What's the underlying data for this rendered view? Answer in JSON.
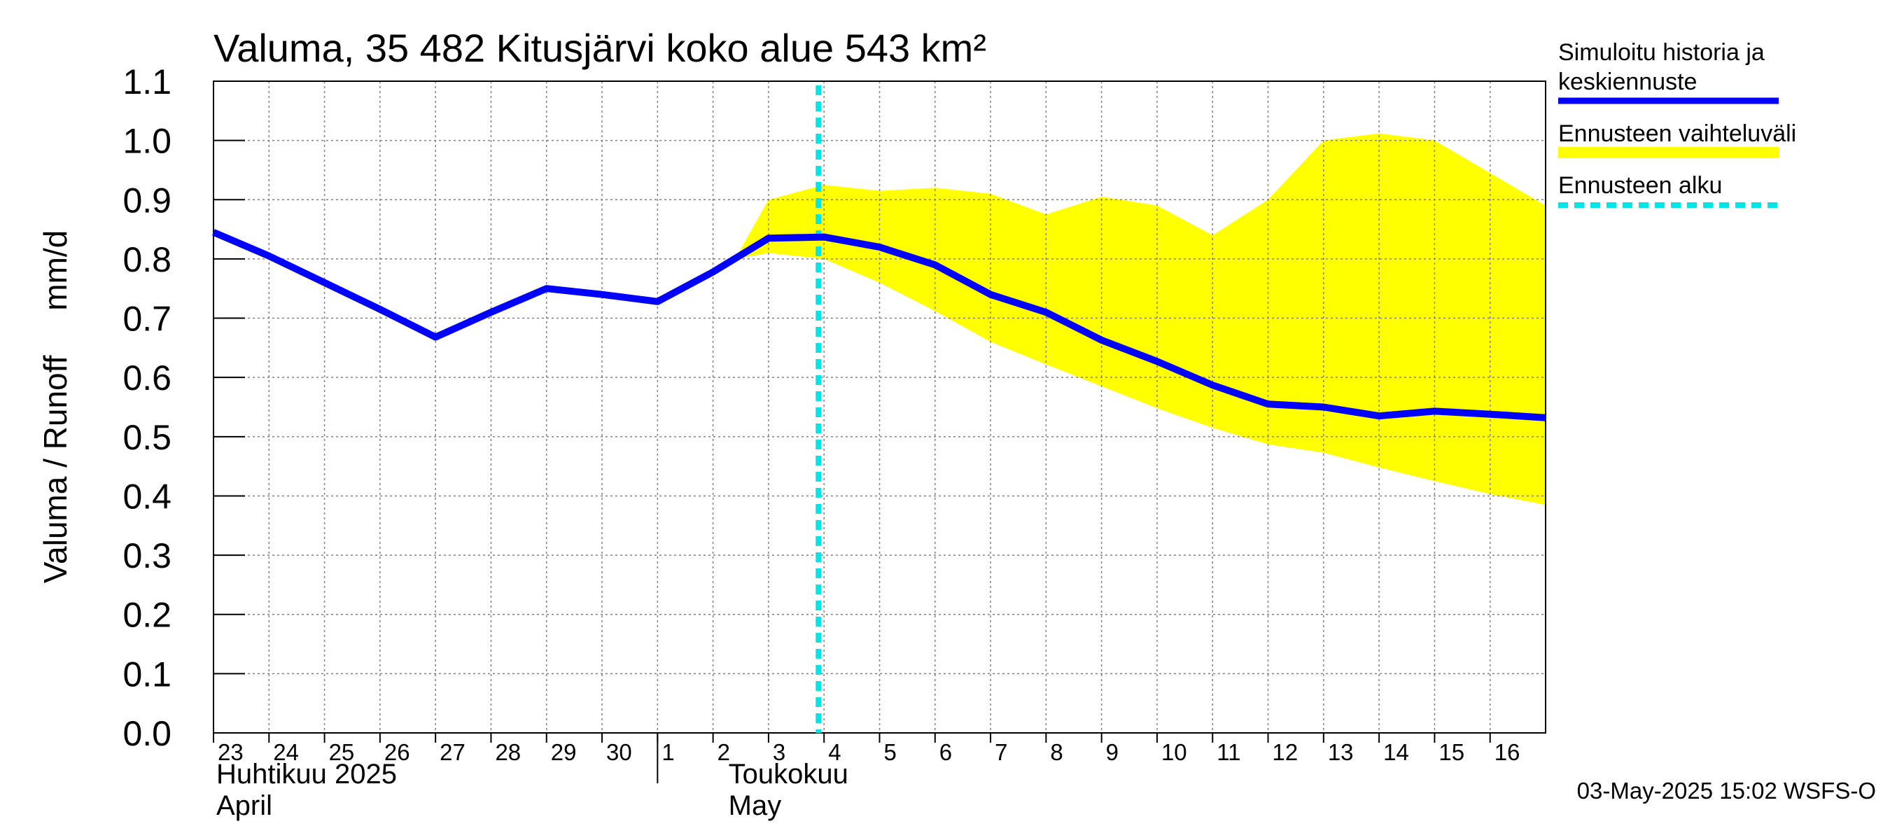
{
  "chart_data": {
    "type": "line",
    "title": "Valuma, 35 482 Kitusjärvi koko alue 543 km²",
    "ylabel": "Valuma / Runoff     mm/d",
    "ylim": [
      0.0,
      1.1
    ],
    "y_ticks": [
      "0.0",
      "0.1",
      "0.2",
      "0.3",
      "0.4",
      "0.5",
      "0.6",
      "0.7",
      "0.8",
      "0.9",
      "1.0",
      "1.1"
    ],
    "x_ticks": [
      "23",
      "24",
      "25",
      "26",
      "27",
      "28",
      "29",
      "30",
      "1",
      "2",
      "3",
      "4",
      "5",
      "6",
      "7",
      "8",
      "9",
      "10",
      "11",
      "12",
      "13",
      "14",
      "15",
      "16"
    ],
    "months": [
      {
        "line1": "Huhtikuu  2025",
        "line2": "April"
      },
      {
        "line1": "Toukokuu",
        "line2": "May"
      }
    ],
    "grid": true,
    "legend_position": "right",
    "forecast_start_day": 10.9,
    "series": [
      {
        "name": "Simuloitu historia ja keskiennuste",
        "color": "#0000ff",
        "x": [
          0,
          1,
          2,
          3,
          4,
          5,
          6,
          7,
          8,
          9,
          10,
          11,
          12,
          13,
          14,
          15,
          16,
          17,
          18,
          19,
          20,
          21,
          22,
          23,
          24
        ],
        "values": [
          0.845,
          0.805,
          0.76,
          0.715,
          0.668,
          0.71,
          0.75,
          0.74,
          0.728,
          0.778,
          0.835,
          0.837,
          0.82,
          0.79,
          0.74,
          0.71,
          0.663,
          0.627,
          0.587,
          0.555,
          0.55,
          0.535,
          0.543,
          0.538,
          0.532
        ]
      }
    ],
    "band": {
      "name": "Ennusteen vaihteluväli",
      "color": "#ffff00",
      "x": [
        9.4,
        10,
        11,
        12,
        13,
        14,
        15,
        16,
        17,
        18,
        19,
        20,
        21,
        22,
        23,
        24
      ],
      "upper": [
        0.8,
        0.9,
        0.925,
        0.915,
        0.92,
        0.91,
        0.875,
        0.905,
        0.89,
        0.84,
        0.9,
        1.0,
        1.012,
        1.0,
        0.945,
        0.89
      ],
      "lower": [
        0.8,
        0.81,
        0.8,
        0.76,
        0.712,
        0.66,
        0.622,
        0.585,
        0.548,
        0.515,
        0.487,
        0.473,
        0.448,
        0.425,
        0.403,
        0.385
      ]
    },
    "forecast_marker": {
      "name": "Ennusteen alku",
      "color": "#00e5e5"
    },
    "legend": [
      {
        "label_lines": [
          "Simuloitu historia ja",
          "keskiennuste"
        ],
        "color": "#0000ff",
        "style": "solid"
      },
      {
        "label_lines": [
          "Ennusteen vaihteluväli"
        ],
        "color": "#ffff00",
        "style": "solid"
      },
      {
        "label_lines": [
          "Ennusteen alku"
        ],
        "color": "#00e5e5",
        "style": "dashed"
      }
    ],
    "timestamp": "03-May-2025 15:02 WSFS-O"
  }
}
